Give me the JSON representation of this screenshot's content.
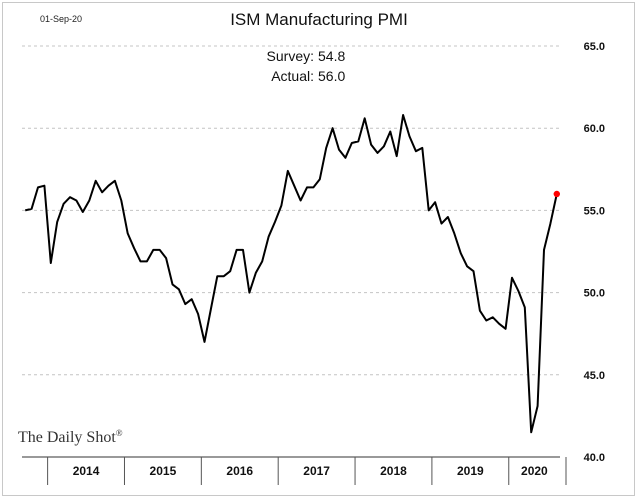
{
  "chart_data": {
    "type": "line",
    "date_stamp": "01-Sep-20",
    "title": "ISM Manufacturing PMI",
    "annotations": [
      {
        "label": "Survey:",
        "value": "54.8"
      },
      {
        "label": "Actual:",
        "value": "56.0"
      }
    ],
    "source": "The Daily Shot",
    "source_mark": "®",
    "ylim": [
      40.0,
      65.0
    ],
    "y_ticks": [
      "65.0",
      "60.0",
      "55.0",
      "50.0",
      "45.0",
      "40.0"
    ],
    "y_axis_side": "right",
    "grid": "horizontal dashed",
    "x_range": [
      "2013-09",
      "2020-08"
    ],
    "x_year_labels": [
      {
        "label": "2014",
        "year": 2014
      },
      {
        "label": "2015",
        "year": 2015
      },
      {
        "label": "2016",
        "year": 2016
      },
      {
        "label": "2017",
        "year": 2017
      },
      {
        "label": "2018",
        "year": 2018
      },
      {
        "label": "2019",
        "year": 2019
      },
      {
        "label": "2020",
        "year": 2020
      }
    ],
    "series": [
      {
        "color": "#000000",
        "points": [
          [
            "2013-09",
            55.0
          ],
          [
            "2013-10",
            55.1
          ],
          [
            "2013-11",
            56.4
          ],
          [
            "2013-12",
            56.5
          ],
          [
            "2014-01",
            51.8
          ],
          [
            "2014-02",
            54.3
          ],
          [
            "2014-03",
            55.4
          ],
          [
            "2014-04",
            55.8
          ],
          [
            "2014-05",
            55.6
          ],
          [
            "2014-06",
            54.9
          ],
          [
            "2014-07",
            55.6
          ],
          [
            "2014-08",
            56.8
          ],
          [
            "2014-09",
            56.1
          ],
          [
            "2014-10",
            56.5
          ],
          [
            "2014-11",
            56.8
          ],
          [
            "2014-12",
            55.6
          ],
          [
            "2015-01",
            53.6
          ],
          [
            "2015-02",
            52.7
          ],
          [
            "2015-03",
            51.9
          ],
          [
            "2015-04",
            51.9
          ],
          [
            "2015-05",
            52.6
          ],
          [
            "2015-06",
            52.6
          ],
          [
            "2015-07",
            52.1
          ],
          [
            "2015-08",
            50.5
          ],
          [
            "2015-09",
            50.2
          ],
          [
            "2015-10",
            49.3
          ],
          [
            "2015-11",
            49.6
          ],
          [
            "2015-12",
            48.7
          ],
          [
            "2016-01",
            47.0
          ],
          [
            "2016-02",
            49.0
          ],
          [
            "2016-03",
            51.0
          ],
          [
            "2016-04",
            51.0
          ],
          [
            "2016-05",
            51.3
          ],
          [
            "2016-06",
            52.6
          ],
          [
            "2016-07",
            52.6
          ],
          [
            "2016-08",
            50.0
          ],
          [
            "2016-09",
            51.2
          ],
          [
            "2016-10",
            51.9
          ],
          [
            "2016-11",
            53.4
          ],
          [
            "2016-12",
            54.3
          ],
          [
            "2017-01",
            55.3
          ],
          [
            "2017-02",
            57.4
          ],
          [
            "2017-03",
            56.5
          ],
          [
            "2017-04",
            55.6
          ],
          [
            "2017-05",
            56.4
          ],
          [
            "2017-06",
            56.4
          ],
          [
            "2017-07",
            56.9
          ],
          [
            "2017-08",
            58.8
          ],
          [
            "2017-09",
            60.0
          ],
          [
            "2017-10",
            58.7
          ],
          [
            "2017-11",
            58.2
          ],
          [
            "2017-12",
            59.1
          ],
          [
            "2018-01",
            59.2
          ],
          [
            "2018-02",
            60.6
          ],
          [
            "2018-03",
            59.0
          ],
          [
            "2018-04",
            58.5
          ],
          [
            "2018-05",
            58.9
          ],
          [
            "2018-06",
            59.8
          ],
          [
            "2018-07",
            58.3
          ],
          [
            "2018-08",
            60.8
          ],
          [
            "2018-09",
            59.5
          ],
          [
            "2018-10",
            58.6
          ],
          [
            "2018-11",
            58.8
          ],
          [
            "2018-12",
            55.0
          ],
          [
            "2019-01",
            55.5
          ],
          [
            "2019-02",
            54.2
          ],
          [
            "2019-03",
            54.6
          ],
          [
            "2019-04",
            53.6
          ],
          [
            "2019-05",
            52.4
          ],
          [
            "2019-06",
            51.6
          ],
          [
            "2019-07",
            51.3
          ],
          [
            "2019-08",
            48.9
          ],
          [
            "2019-09",
            48.3
          ],
          [
            "2019-10",
            48.5
          ],
          [
            "2019-11",
            48.1
          ],
          [
            "2019-12",
            47.8
          ],
          [
            "2020-01",
            50.9
          ],
          [
            "2020-02",
            50.1
          ],
          [
            "2020-03",
            49.1
          ],
          [
            "2020-04",
            41.5
          ],
          [
            "2020-05",
            43.1
          ],
          [
            "2020-06",
            52.6
          ],
          [
            "2020-07",
            54.2
          ],
          [
            "2020-08",
            56.0
          ]
        ]
      }
    ],
    "highlight": {
      "x": "2020-08",
      "y": 56.0,
      "color": "#ff0000"
    }
  }
}
